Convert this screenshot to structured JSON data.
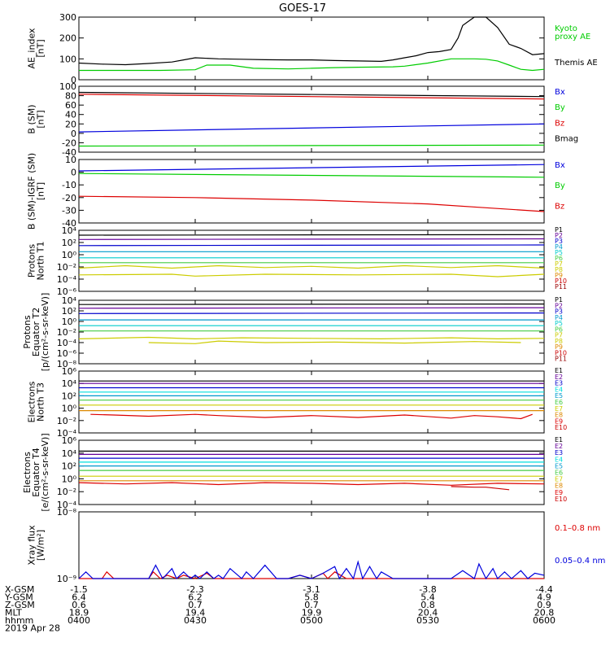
{
  "title": "GOES-17",
  "xaxis": {
    "row_labels": [
      "X-GSM",
      "Y-GSM",
      "Z-GSM",
      "MLT",
      "hhmm",
      "2019 Apr 28"
    ],
    "columns": [
      [
        "-1.5",
        "6.4",
        "0.6",
        "18.9",
        "0400"
      ],
      [
        "-2.3",
        "6.2",
        "0.7",
        "19.4",
        "0430"
      ],
      [
        "-3.1",
        "5.8",
        "0.7",
        "19.9",
        "0500"
      ],
      [
        "-3.8",
        "5.4",
        "0.8",
        "20.4",
        "0530"
      ],
      [
        "-4.4",
        "4.9",
        "0.9",
        "20.8",
        "0600"
      ]
    ]
  },
  "colors": {
    "black": "#000000",
    "green": "#00cc00",
    "blue": "#0000dd",
    "red": "#dd0000",
    "purple": "#660099",
    "navy": "#0000cc",
    "teal": "#0099cc",
    "cyan": "#00cccc",
    "aqua": "#00dddd",
    "lime": "#44cc44",
    "yellow": "#cccc00",
    "orange": "#dd8800",
    "darkred": "#cc0000",
    "maroon": "#990000"
  },
  "chart_data": [
    {
      "type": "line",
      "id": "ae",
      "ylabel": "AE_index [nT]",
      "ylim": [
        0,
        300
      ],
      "ytick_labels": [
        "0",
        "100",
        "200",
        "300"
      ],
      "x_unit": "hour UT (04:00–06:00)",
      "series": [
        {
          "name": "Kyoto proxy AE",
          "color": "green",
          "legend_lines": [
            "Kyoto",
            "proxy AE"
          ],
          "x": [
            4.0,
            4.2,
            4.35,
            4.5,
            4.55,
            4.65,
            4.75,
            4.9,
            5.0,
            5.1,
            5.2,
            5.35,
            5.4,
            5.5,
            5.6,
            5.7,
            5.75,
            5.8,
            5.85,
            5.9,
            5.95,
            6.0
          ],
          "y": [
            45,
            45,
            45,
            48,
            70,
            70,
            55,
            52,
            55,
            58,
            60,
            62,
            65,
            80,
            100,
            100,
            98,
            90,
            70,
            50,
            45,
            50
          ]
        },
        {
          "name": "Themis AE",
          "color": "black",
          "legend_lines": [
            "Themis AE"
          ],
          "x": [
            4.0,
            4.1,
            4.2,
            4.3,
            4.4,
            4.45,
            4.5,
            4.6,
            4.7,
            4.8,
            4.9,
            5.0,
            5.1,
            5.2,
            5.3,
            5.35,
            5.4,
            5.45,
            5.5,
            5.55,
            5.6,
            5.63,
            5.65,
            5.7,
            5.75,
            5.8,
            5.85,
            5.9,
            5.95,
            6.0
          ],
          "y": [
            80,
            75,
            72,
            78,
            85,
            95,
            105,
            100,
            98,
            96,
            95,
            95,
            92,
            90,
            88,
            95,
            105,
            115,
            130,
            135,
            145,
            200,
            260,
            310,
            300,
            250,
            170,
            150,
            120,
            125
          ]
        }
      ]
    },
    {
      "type": "line",
      "id": "bsm",
      "ylabel": "B (SM) [nT]",
      "ylim": [
        -40,
        100
      ],
      "ytick_labels": [
        "100",
        "80",
        "60",
        "40",
        "20",
        "0",
        "-20",
        "-40"
      ],
      "series": [
        {
          "name": "Bx",
          "color": "blue",
          "x": [
            4.0,
            6.0
          ],
          "y": [
            3,
            20
          ]
        },
        {
          "name": "By",
          "color": "green",
          "x": [
            4.0,
            6.0
          ],
          "y": [
            -27,
            -25
          ]
        },
        {
          "name": "Bz",
          "color": "red",
          "x": [
            4.0,
            6.0
          ],
          "y": [
            83,
            73
          ]
        },
        {
          "name": "Bmag",
          "color": "black",
          "x": [
            4.0,
            6.0
          ],
          "y": [
            87,
            78
          ]
        }
      ]
    },
    {
      "type": "line",
      "id": "bigrf",
      "ylabel": "B (SM)-IGRF (SM) [nT]",
      "ylim": [
        -40,
        10
      ],
      "ytick_labels": [
        "10",
        "0",
        "-10",
        "-20",
        "-30",
        "-40"
      ],
      "series": [
        {
          "name": "Bx",
          "color": "blue",
          "x": [
            4.0,
            6.0
          ],
          "y": [
            1,
            6
          ]
        },
        {
          "name": "By",
          "color": "green",
          "x": [
            4.0,
            6.0
          ],
          "y": [
            -1,
            -4
          ]
        },
        {
          "name": "Bz",
          "color": "red",
          "x": [
            4.0,
            4.5,
            5.0,
            5.5,
            5.75,
            6.0
          ],
          "y": [
            -19,
            -20,
            -22,
            -25,
            -28,
            -31
          ]
        }
      ]
    },
    {
      "type": "line",
      "id": "p1",
      "log": true,
      "ylabel_lines": [
        "Protons",
        "North T1"
      ],
      "ylim_exp": [
        -6,
        4
      ],
      "ytick_labels": [
        "10⁴",
        "10²",
        "10⁰",
        "10⁻²",
        "10⁻⁴",
        "10⁻⁶"
      ],
      "series": [
        {
          "name": "P1",
          "color": "black",
          "x": [
            4.0,
            6.0
          ],
          "y": [
            3.2,
            3.3
          ]
        },
        {
          "name": "P2",
          "color": "purple",
          "x": [
            4.0,
            6.0
          ],
          "y": [
            2.5,
            2.6
          ]
        },
        {
          "name": "P3",
          "color": "navy",
          "x": [
            4.0,
            6.0
          ],
          "y": [
            1.5,
            1.6
          ]
        },
        {
          "name": "P4",
          "color": "teal",
          "x": [
            4.0,
            6.0
          ],
          "y": [
            0.5,
            0.5
          ]
        },
        {
          "name": "P5",
          "color": "cyan",
          "x": [
            4.0,
            6.0
          ],
          "y": [
            -0.5,
            -0.5
          ]
        },
        {
          "name": "P6",
          "color": "lime",
          "x": [
            4.0,
            6.0
          ],
          "y": [
            -1.3,
            -1.3
          ]
        },
        {
          "name": "P7",
          "color": "yellow",
          "x": [
            4.0,
            4.2,
            4.4,
            4.6,
            4.8,
            5.0,
            5.2,
            5.4,
            5.6,
            5.8,
            6.0
          ],
          "y": [
            -2.2,
            -1.8,
            -2.2,
            -1.8,
            -2.1,
            -1.9,
            -2.2,
            -1.8,
            -2.1,
            -1.8,
            -2.2
          ]
        },
        {
          "name": "P8",
          "color": "yellow",
          "x": [
            4.0,
            4.4,
            4.5,
            4.8,
            5.2,
            5.6,
            5.8,
            6.0
          ],
          "y": [
            -3.3,
            -3.2,
            -3.5,
            -3.2,
            -3.3,
            -3.2,
            -3.6,
            -3.2
          ]
        },
        {
          "name": "P9",
          "color": "orange",
          "x": [],
          "y": []
        },
        {
          "name": "P10",
          "color": "darkred",
          "x": [],
          "y": []
        },
        {
          "name": "P11",
          "color": "maroon",
          "x": [],
          "y": []
        }
      ]
    },
    {
      "type": "line",
      "id": "p2",
      "log": true,
      "ylabel_lines": [
        "Protons",
        "Equator T2",
        "[p/(cm²-s-sr-keV)]"
      ],
      "ylim_exp": [
        -8,
        4
      ],
      "ytick_labels": [
        "10⁴",
        "10²",
        "10⁰",
        "10⁻²",
        "10⁻⁴",
        "10⁻⁶",
        "10⁻⁸"
      ],
      "series": [
        {
          "name": "P1",
          "color": "black",
          "x": [
            4.0,
            6.0
          ],
          "y": [
            3.2,
            3.3
          ]
        },
        {
          "name": "P2",
          "color": "purple",
          "x": [
            4.0,
            6.0
          ],
          "y": [
            2.5,
            2.6
          ]
        },
        {
          "name": "P3",
          "color": "navy",
          "x": [
            4.0,
            6.0
          ],
          "y": [
            1.5,
            1.6
          ]
        },
        {
          "name": "P4",
          "color": "teal",
          "x": [
            4.0,
            6.0
          ],
          "y": [
            0.3,
            0.3
          ]
        },
        {
          "name": "P5",
          "color": "cyan",
          "x": [
            4.0,
            6.0
          ],
          "y": [
            -0.8,
            -0.8
          ]
        },
        {
          "name": "P6",
          "color": "lime",
          "x": [
            4.0,
            6.0
          ],
          "y": [
            -1.8,
            -1.8
          ]
        },
        {
          "name": "P7",
          "color": "yellow",
          "x": [
            4.0,
            4.3,
            4.5,
            4.7,
            5.0,
            5.3,
            5.6,
            5.8,
            6.0
          ],
          "y": [
            -3.3,
            -3.0,
            -3.3,
            -3.1,
            -3.2,
            -3.3,
            -3.1,
            -3.3,
            -3.2
          ]
        },
        {
          "name": "P8",
          "color": "yellow",
          "x": [
            4.3,
            4.5,
            4.6,
            4.8,
            5.1,
            5.4,
            5.7,
            5.9
          ],
          "y": [
            -4.0,
            -4.2,
            -3.7,
            -4.0,
            -3.9,
            -4.1,
            -3.8,
            -4.0
          ]
        },
        {
          "name": "P9",
          "color": "orange",
          "x": [],
          "y": []
        },
        {
          "name": "P10",
          "color": "darkred",
          "x": [],
          "y": []
        },
        {
          "name": "P11",
          "color": "maroon",
          "x": [],
          "y": []
        }
      ]
    },
    {
      "type": "line",
      "id": "e3",
      "log": true,
      "ylabel_lines": [
        "Electrons",
        "North T3"
      ],
      "ylim_exp": [
        -4,
        6
      ],
      "ytick_labels": [
        "10⁶",
        "10⁴",
        "10²",
        "10⁰",
        "10⁻²",
        "10⁻⁴"
      ],
      "series": [
        {
          "name": "E1",
          "color": "black",
          "x": [
            4.0,
            6.0
          ],
          "y": [
            4.4,
            4.4
          ]
        },
        {
          "name": "E2",
          "color": "purple",
          "x": [
            4.0,
            6.0
          ],
          "y": [
            4.0,
            4.0
          ]
        },
        {
          "name": "E3",
          "color": "navy",
          "x": [
            4.0,
            6.0
          ],
          "y": [
            3.3,
            3.3
          ]
        },
        {
          "name": "E4",
          "color": "aqua",
          "x": [
            4.0,
            6.0
          ],
          "y": [
            2.6,
            2.6
          ]
        },
        {
          "name": "E5",
          "color": "teal",
          "x": [
            4.0,
            6.0
          ],
          "y": [
            2.0,
            2.0
          ]
        },
        {
          "name": "E6",
          "color": "lime",
          "x": [
            4.0,
            6.0
          ],
          "y": [
            1.3,
            1.3
          ]
        },
        {
          "name": "E7",
          "color": "yellow",
          "x": [
            4.0,
            6.0
          ],
          "y": [
            0.5,
            0.5
          ]
        },
        {
          "name": "E8",
          "color": "orange",
          "x": [
            4.0,
            6.0
          ],
          "y": [
            -0.4,
            -0.4
          ]
        },
        {
          "name": "E9",
          "color": "red",
          "x": [
            4.05,
            4.15,
            4.3,
            4.5,
            4.6,
            4.8,
            5.0,
            5.2,
            5.4,
            5.6,
            5.7,
            5.8,
            5.9,
            5.95
          ],
          "y": [
            -1.0,
            -1.1,
            -1.3,
            -1.0,
            -1.2,
            -1.5,
            -1.2,
            -1.5,
            -1.1,
            -1.6,
            -1.2,
            -1.4,
            -1.7,
            -1.0
          ]
        },
        {
          "name": "E10",
          "color": "darkred",
          "x": [],
          "y": []
        }
      ]
    },
    {
      "type": "line",
      "id": "e4",
      "log": true,
      "ylabel_lines": [
        "Electrons",
        "Equator T4",
        "[e/(cm²-s-sr-keV)]"
      ],
      "ylim_exp": [
        -4,
        6
      ],
      "ytick_labels": [
        "10⁶",
        "10⁴",
        "10²",
        "10⁰",
        "10⁻²",
        "10⁻⁴"
      ],
      "series": [
        {
          "name": "E1",
          "color": "black",
          "x": [
            4.0,
            6.0
          ],
          "y": [
            4.3,
            4.3
          ]
        },
        {
          "name": "E2",
          "color": "purple",
          "x": [
            4.0,
            6.0
          ],
          "y": [
            3.8,
            3.8
          ]
        },
        {
          "name": "E3",
          "color": "navy",
          "x": [
            4.0,
            6.0
          ],
          "y": [
            3.2,
            3.2
          ]
        },
        {
          "name": "E4",
          "color": "aqua",
          "x": [
            4.0,
            6.0
          ],
          "y": [
            2.6,
            2.6
          ]
        },
        {
          "name": "E5",
          "color": "teal",
          "x": [
            4.0,
            6.0
          ],
          "y": [
            2.0,
            2.0
          ]
        },
        {
          "name": "E6",
          "color": "lime",
          "x": [
            4.0,
            6.0
          ],
          "y": [
            1.3,
            1.3
          ]
        },
        {
          "name": "E7",
          "color": "yellow",
          "x": [
            4.0,
            6.0
          ],
          "y": [
            0.4,
            0.4
          ]
        },
        {
          "name": "E8",
          "color": "orange",
          "x": [
            4.0,
            6.0
          ],
          "y": [
            -0.3,
            -0.3
          ]
        },
        {
          "name": "E9",
          "color": "red",
          "x": [
            4.0,
            4.2,
            4.4,
            4.6,
            4.8,
            5.0,
            5.2,
            5.4,
            5.6,
            5.8,
            6.0
          ],
          "y": [
            -0.6,
            -0.8,
            -0.6,
            -0.9,
            -0.6,
            -0.7,
            -0.9,
            -0.7,
            -1.0,
            -0.7,
            -0.8
          ]
        },
        {
          "name": "E10",
          "color": "darkred",
          "x": [
            5.6,
            5.7,
            5.75,
            5.85
          ],
          "y": [
            -1.2,
            -1.3,
            -1.3,
            -1.7
          ]
        }
      ]
    },
    {
      "type": "line",
      "id": "xray",
      "log": true,
      "ylabel": "Xray flux [W/m²]",
      "ylim_exp": [
        -9,
        -8
      ],
      "ytick_labels": [
        "10⁻⁸",
        "10⁻⁹"
      ],
      "series": [
        {
          "name": "0.1–0.8 nm",
          "color": "red",
          "x": [
            4.0,
            4.05,
            4.1,
            4.12,
            4.15,
            4.3,
            4.32,
            4.35,
            4.38,
            4.42,
            4.45,
            4.5,
            4.55,
            4.58,
            4.6,
            4.9,
            4.95,
            5.0,
            5.05,
            5.07,
            5.1,
            5.15,
            5.2,
            6.0
          ],
          "y": [
            -9,
            -9,
            -9,
            -8.9,
            -9,
            -9,
            -8.9,
            -9,
            -8.95,
            -9,
            -8.95,
            -9,
            -8.92,
            -9,
            -9,
            -9,
            -8.95,
            -9,
            -8.92,
            -9,
            -8.9,
            -9,
            -9,
            -9
          ]
        },
        {
          "name": "0.05–0.4 nm",
          "color": "blue",
          "x": [
            4.0,
            4.03,
            4.06,
            4.1,
            4.3,
            4.33,
            4.36,
            4.4,
            4.42,
            4.45,
            4.48,
            4.5,
            4.52,
            4.55,
            4.58,
            4.6,
            4.62,
            4.65,
            4.7,
            4.72,
            4.75,
            4.8,
            4.85,
            4.9,
            4.95,
            5.0,
            5.05,
            5.1,
            5.12,
            5.15,
            5.18,
            5.2,
            5.22,
            5.25,
            5.28,
            5.3,
            5.35,
            5.4,
            5.6,
            5.65,
            5.7,
            5.72,
            5.75,
            5.78,
            5.8,
            5.83,
            5.86,
            5.9,
            5.93,
            5.96,
            6.0
          ],
          "y": [
            -9,
            -8.9,
            -9,
            -9,
            -9,
            -8.8,
            -9,
            -8.85,
            -9,
            -8.9,
            -9,
            -8.95,
            -9,
            -8.9,
            -9,
            -8.95,
            -9,
            -8.85,
            -9,
            -8.9,
            -9,
            -8.8,
            -9,
            -9,
            -8.95,
            -9,
            -8.92,
            -8.82,
            -9,
            -8.85,
            -9,
            -8.75,
            -9,
            -8.82,
            -9,
            -8.9,
            -9,
            -9,
            -9,
            -8.88,
            -9,
            -8.78,
            -9,
            -8.85,
            -9,
            -8.9,
            -9,
            -8.88,
            -9,
            -8.92,
            -8.95
          ]
        }
      ]
    }
  ]
}
